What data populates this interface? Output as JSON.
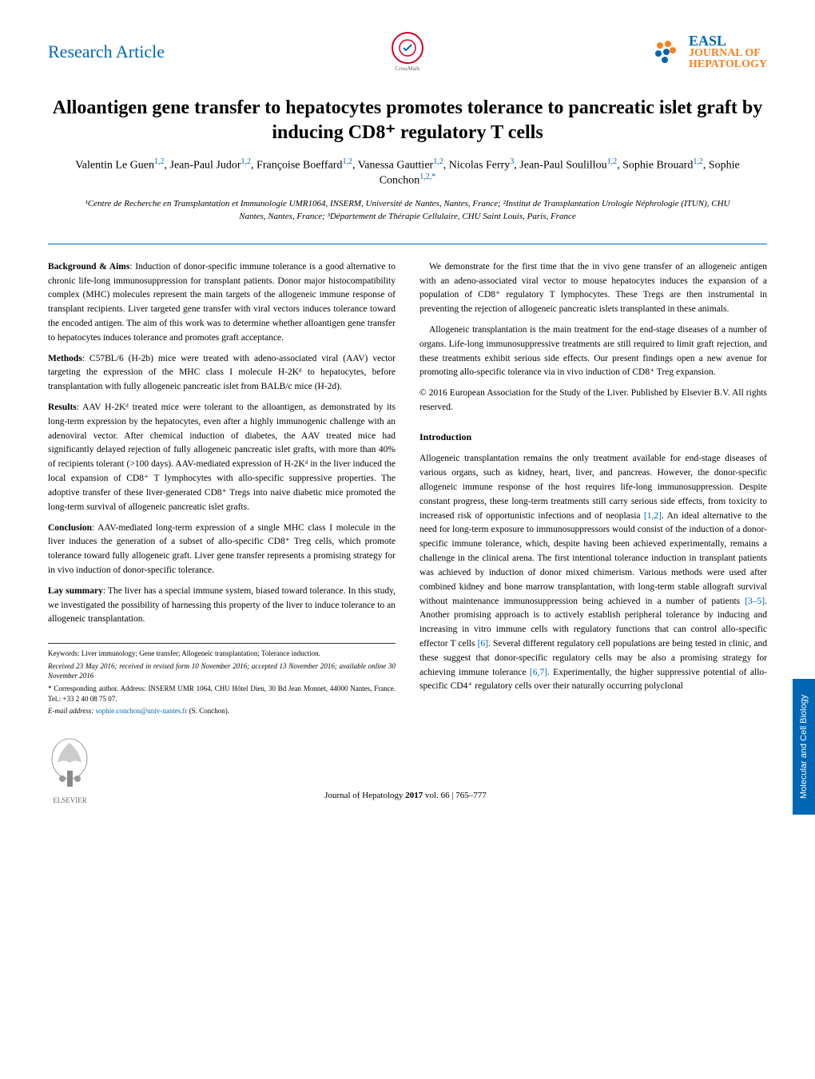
{
  "header": {
    "article_type": "Research Article",
    "crossmark_label": "CrossMark",
    "journal_prefix": "EASL",
    "journal_name_line1": "JOURNAL OF",
    "journal_name_line2": "HEPATOLOGY"
  },
  "title": "Alloantigen gene transfer to hepatocytes promotes tolerance to pancreatic islet graft by inducing CD8⁺ regulatory T cells",
  "authors_html": "Valentin Le Guen<sup>1,2</sup>, Jean-Paul Judor<sup>1,2</sup>, Françoise Boeffard<sup>1,2</sup>, Vanessa Gauttier<sup>1,2</sup>, Nicolas Ferry<sup>3</sup>, Jean-Paul Soulillou<sup>1,2</sup>, Sophie Brouard<sup>1,2</sup>, Sophie Conchon<sup>1,2,*</sup>",
  "affiliations": "¹Centre de Recherche en Transplantation et Immunologie UMR1064, INSERM, Université de Nantes, Nantes, France; ²Institut de Transplantation Urologie Néphrologie (ITUN), CHU Nantes, Nantes, France; ³Département de Thérapie Cellulaire, CHU Saint Louis, Paris, France",
  "abstract": {
    "background_label": "Background & Aims",
    "background": "Induction of donor-specific immune tolerance is a good alternative to chronic life-long immunosuppression for transplant patients. Donor major histocompatibility complex (MHC) molecules represent the main targets of the allogeneic immune response of transplant recipients. Liver targeted gene transfer with viral vectors induces tolerance toward the encoded antigen. The aim of this work was to determine whether alloantigen gene transfer to hepatocytes induces tolerance and promotes graft acceptance.",
    "methods_label": "Methods",
    "methods": "C57BL/6 (H-2b) mice were treated with adeno-associated viral (AAV) vector targeting the expression of the MHC class I molecule H-2Kᵈ to hepatocytes, before transplantation with fully allogeneic pancreatic islet from BALB/c mice (H-2d).",
    "results_label": "Results",
    "results": "AAV H-2Kᵈ treated mice were tolerant to the alloantigen, as demonstrated by its long-term expression by the hepatocytes, even after a highly immunogenic challenge with an adenoviral vector. After chemical induction of diabetes, the AAV treated mice had significantly delayed rejection of fully allogeneic pancreatic islet grafts, with more than 40% of recipients tolerant (>100 days). AAV-mediated expression of H-2Kᵈ in the liver induced the local expansion of CD8⁺ T lymphocytes with allo-specific suppressive properties. The adoptive transfer of these liver-generated CD8⁺ Tregs into naive diabetic mice promoted the long-term survival of allogeneic pancreatic islet grafts.",
    "conclusion_label": "Conclusion",
    "conclusion": "AAV-mediated long-term expression of a single MHC class I molecule in the liver induces the generation of a subset of allo-specific CD8⁺ Treg cells, which promote tolerance toward fully allogeneic graft. Liver gene transfer represents a promising strategy for in vivo induction of donor-specific tolerance.",
    "lay_label": "Lay summary",
    "lay": "The liver has a special immune system, biased toward tolerance. In this study, we investigated the possibility of harnessing this property of the liver to induce tolerance to an allogeneic transplantation."
  },
  "right_col": {
    "p1": "We demonstrate for the first time that the in vivo gene transfer of an allogeneic antigen with an adeno-associated viral vector to mouse hepatocytes induces the expansion of a population of CD8⁺ regulatory T lymphocytes. These Tregs are then instrumental in preventing the rejection of allogeneic pancreatic islets transplanted in these animals.",
    "p2": "Allogeneic transplantation is the main treatment for the end-stage diseases of a number of organs. Life-long immunosuppressive treatments are still required to limit graft rejection, and these treatments exhibit serious side effects. Our present findings open a new avenue for promoting allo-specific tolerance via in vivo induction of CD8⁺ Treg expansion.",
    "copyright": "© 2016 European Association for the Study of the Liver. Published by Elsevier B.V. All rights reserved.",
    "intro_heading": "Introduction",
    "intro": "Allogeneic transplantation remains the only treatment available for end-stage diseases of various organs, such as kidney, heart, liver, and pancreas. However, the donor-specific allogeneic immune response of the host requires life-long immunosuppression. Despite constant progress, these long-term treatments still carry serious side effects, from toxicity to increased risk of opportunistic infections and of neoplasia [1,2]. An ideal alternative to the need for long-term exposure to immunosuppressors would consist of the induction of a donor-specific immune tolerance, which, despite having been achieved experimentally, remains a challenge in the clinical arena. The first intentional tolerance induction in transplant patients was achieved by induction of donor mixed chimerism. Various methods were used after combined kidney and bone marrow transplantation, with long-term stable allograft survival without maintenance immunosuppression being achieved in a number of patients [3–5]. Another promising approach is to actively establish peripheral tolerance by inducing and increasing in vitro immune cells with regulatory functions that can control allo-specific effector T cells [6]. Several different regulatory cell populations are being tested in clinic, and these suggest that donor-specific regulatory cells may be also a promising strategy for achieving immune tolerance [6,7]. Experimentally, the higher suppressive potential of allo-specific CD4⁺ regulatory cells over their naturally occurring polyclonal"
  },
  "footnotes": {
    "keywords": "Keywords: Liver immunology; Gene transfer; Allogeneic transplantation; Tolerance induction.",
    "received": "Received 23 May 2016; received in revised form 10 November 2016; accepted 13 November 2016; available online 30 November 2016",
    "corresponding": "* Corresponding author. Address: INSERM UMR 1064, CHU Hôtel Dieu, 30 Bd Jean Monnet, 44000 Nantes, France. Tel.: +33 2 40 08 75 07.",
    "email_label": "E-mail address:",
    "email": "sophie.conchon@univ-nantes.fr",
    "email_suffix": "(S. Conchon)."
  },
  "footer": {
    "elsevier_label": "ELSEVIER",
    "citation": "Journal of Hepatology 2017 vol. 66 | 765–777"
  },
  "side_tab": "Molecular and Cell Biology",
  "colors": {
    "primary_blue": "#0066b3",
    "orange": "#f58220",
    "red": "#d4002a"
  }
}
